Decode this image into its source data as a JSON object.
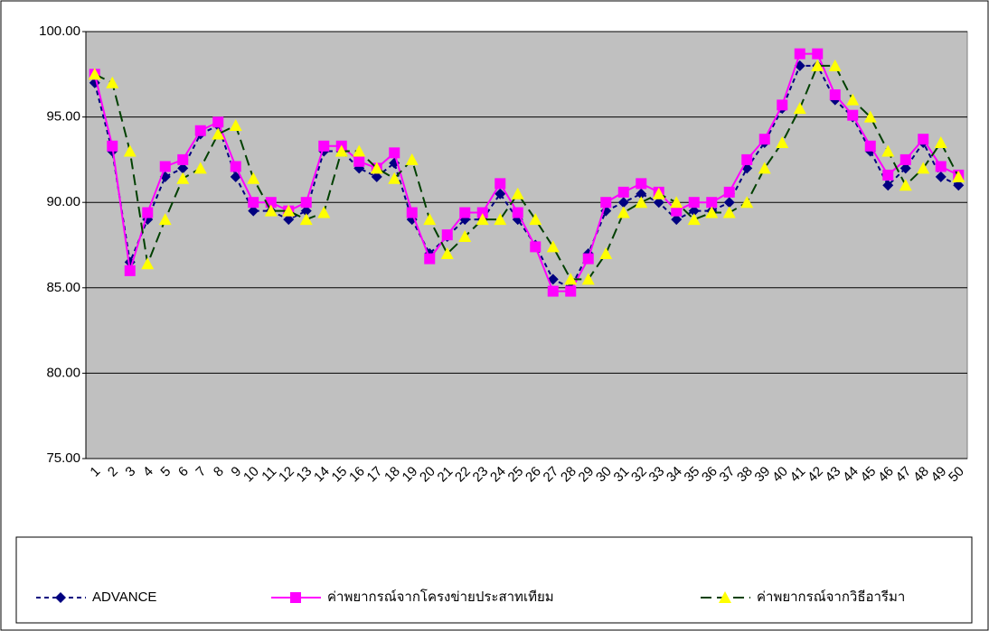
{
  "chart_data": {
    "type": "line",
    "categories": [
      "1",
      "2",
      "3",
      "4",
      "5",
      "6",
      "7",
      "8",
      "9",
      "10",
      "11",
      "12",
      "13",
      "14",
      "15",
      "16",
      "17",
      "18",
      "19",
      "20",
      "21",
      "22",
      "23",
      "24",
      "25",
      "26",
      "27",
      "28",
      "29",
      "30",
      "31",
      "32",
      "33",
      "34",
      "35",
      "36",
      "37",
      "38",
      "39",
      "40",
      "41",
      "42",
      "43",
      "44",
      "45",
      "46",
      "47",
      "48",
      "49",
      "50"
    ],
    "ylim": [
      75,
      100
    ],
    "yticks": [
      {
        "value": 75,
        "label": "75.00"
      },
      {
        "value": 80,
        "label": "80.00"
      },
      {
        "value": 85,
        "label": "85.00"
      },
      {
        "value": 90,
        "label": "90.00"
      },
      {
        "value": 95,
        "label": "95.00"
      },
      {
        "value": 100,
        "label": "100.00"
      }
    ],
    "grid": true,
    "legend": "bottom",
    "series": [
      {
        "name": "ADVANCE",
        "color": "#000080",
        "marker": "diamond",
        "marker_color": "#000080",
        "line_style": "dashed",
        "values": [
          97.0,
          93.0,
          86.5,
          89.0,
          91.5,
          92.0,
          94.0,
          94.5,
          91.5,
          89.5,
          89.5,
          89.0,
          89.5,
          93.0,
          93.0,
          92.0,
          91.5,
          92.3,
          89.0,
          87.0,
          88.0,
          89.0,
          89.0,
          90.5,
          89.0,
          87.5,
          85.5,
          85.0,
          87.0,
          89.5,
          90.0,
          90.5,
          90.0,
          89.0,
          89.5,
          89.5,
          90.0,
          92.0,
          93.5,
          95.5,
          98.0,
          98.0,
          96.0,
          95.0,
          93.0,
          91.0,
          92.0,
          93.5,
          91.5,
          91.0
        ]
      },
      {
        "name": "ค่าพยากรณ์จากโครงข่ายประสาทเทียม",
        "color": "#ff00ff",
        "marker": "square",
        "marker_color": "#ff00ff",
        "line_style": "solid",
        "values": [
          97.5,
          93.3,
          86.0,
          89.4,
          92.1,
          92.5,
          94.2,
          94.7,
          92.1,
          90.0,
          90.0,
          89.5,
          90.0,
          93.3,
          93.3,
          92.4,
          92.0,
          92.9,
          89.4,
          86.7,
          88.1,
          89.4,
          89.4,
          91.1,
          89.4,
          87.4,
          84.8,
          84.8,
          86.7,
          90.0,
          90.6,
          91.1,
          90.6,
          89.5,
          90.0,
          90.0,
          90.6,
          92.5,
          93.7,
          95.7,
          98.7,
          98.7,
          96.3,
          95.1,
          93.3,
          91.6,
          92.5,
          93.7,
          92.1,
          91.6
        ]
      },
      {
        "name": "ค่าพยากรณ์จากวิธีอารีมา",
        "color": "#004000",
        "marker": "triangle",
        "marker_color": "#ffff00",
        "line_style": "longdash",
        "values": [
          97.5,
          97.0,
          93.0,
          86.4,
          89.0,
          91.4,
          92.0,
          94.0,
          94.5,
          91.4,
          89.5,
          89.5,
          89.0,
          89.4,
          93.0,
          93.0,
          92.0,
          91.4,
          92.5,
          89.0,
          87.0,
          88.0,
          89.0,
          89.0,
          90.5,
          89.0,
          87.4,
          85.5,
          85.5,
          87.0,
          89.4,
          90.0,
          90.5,
          90.0,
          89.0,
          89.4,
          89.4,
          90.0,
          92.0,
          93.5,
          95.5,
          98.0,
          98.0,
          96.0,
          95.0,
          93.0,
          91.0,
          92.0,
          93.5,
          91.5
        ]
      }
    ]
  }
}
